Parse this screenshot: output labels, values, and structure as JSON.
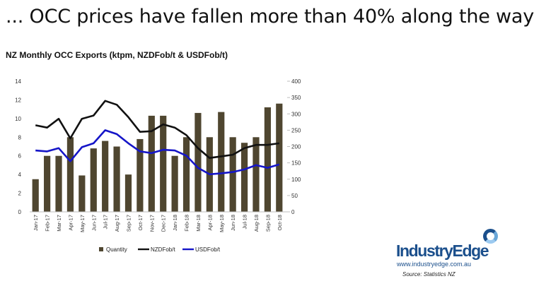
{
  "slide": {
    "title": "... OCC prices have fallen more than 40% along the way"
  },
  "chart_data": {
    "type": "bar",
    "title": "NZ Monthly OCC Exports (ktpm, NZDFob/t & USDFob/t)",
    "categories": [
      "Jan-17",
      "Feb-17",
      "Mar-17",
      "Apr-17",
      "May-17",
      "Jun-17",
      "Jul-17",
      "Aug-17",
      "Sep-17",
      "Oct-17",
      "Nov-17",
      "Dec-17",
      "Jan-18",
      "Feb-18",
      "Mar-18",
      "Apr-18",
      "May-18",
      "Jun-18",
      "Jul-18",
      "Aug-18",
      "Sep-18",
      "Oct-18"
    ],
    "y_left": {
      "ticks": [
        "0",
        "2",
        "4",
        "6",
        "8",
        "10",
        "12",
        "14"
      ],
      "ylim": [
        0,
        14
      ]
    },
    "y_right": {
      "ticks": [
        "0",
        "50",
        "100",
        "150",
        "200",
        "250",
        "300",
        "350",
        "400"
      ],
      "ylim": [
        0,
        400
      ]
    },
    "grid": false,
    "legend_position": "bottom",
    "series": [
      {
        "name": "Quantity",
        "kind": "bar",
        "axis": "left",
        "color": "#4f4630",
        "values": [
          3.5,
          6.0,
          6.0,
          8.0,
          3.9,
          6.8,
          7.6,
          7.0,
          4.0,
          7.8,
          10.3,
          10.3,
          6.0,
          8.0,
          10.6,
          8.0,
          10.7,
          8.0,
          7.4,
          8.0,
          11.2,
          11.6
        ]
      },
      {
        "name": "NZDFob/t",
        "kind": "line",
        "axis": "right",
        "color": "#111111",
        "values": [
          265,
          258,
          285,
          225,
          285,
          295,
          340,
          328,
          290,
          245,
          247,
          268,
          258,
          235,
          195,
          165,
          170,
          175,
          195,
          205,
          205,
          210
        ]
      },
      {
        "name": "USDFob/t",
        "kind": "line",
        "axis": "right",
        "color": "#1515c8",
        "values": [
          188,
          185,
          195,
          155,
          198,
          210,
          250,
          238,
          210,
          185,
          180,
          190,
          188,
          172,
          135,
          115,
          118,
          122,
          130,
          143,
          135,
          145
        ]
      }
    ]
  },
  "logo": {
    "name": "IndustryEdge",
    "url": "www.industryedge.com.au"
  },
  "source": "Source: Statistics NZ"
}
